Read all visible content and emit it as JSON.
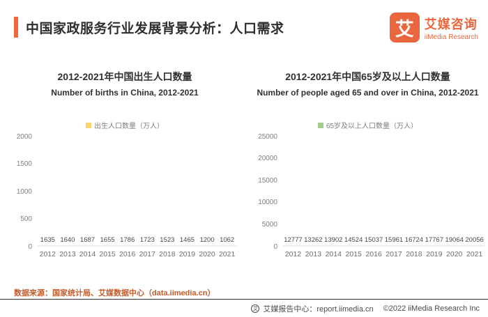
{
  "header": {
    "title": "中国家政服务行业发展背景分析：人口需求"
  },
  "logo": {
    "mark": "艾",
    "name_cn": "艾媒咨询",
    "name_en": "iiMedia Research"
  },
  "chart_data": [
    {
      "type": "bar",
      "title": "2012-2021年中国出生人口数量",
      "subtitle": "Number of births in China, 2012-2021",
      "legend": "出生人口数量（万人）",
      "legend_position": "top-center",
      "bar_color": "#F8D66D",
      "grid": false,
      "categories": [
        "2012",
        "2013",
        "2014",
        "2015",
        "2016",
        "2017",
        "2018",
        "2019",
        "2020",
        "2021"
      ],
      "values": [
        1635,
        1640,
        1687,
        1655,
        1786,
        1723,
        1523,
        1465,
        1200,
        1062
      ],
      "xlabel": "",
      "ylabel": "",
      "ylim": [
        0,
        2000
      ],
      "yticks": [
        0,
        500,
        1000,
        1500,
        2000
      ]
    },
    {
      "type": "bar",
      "title": "2012-2021年中国65岁及以上人口数量",
      "subtitle": "Number of people aged 65 and over in China, 2012-2021",
      "legend": "65岁及以上人口数量（万人）",
      "legend_position": "top-center",
      "bar_color": "#A4CE8C",
      "grid": false,
      "categories": [
        "2012",
        "2013",
        "2014",
        "2015",
        "2016",
        "2017",
        "2018",
        "2019",
        "2020",
        "2021"
      ],
      "values": [
        12777,
        13262,
        13902,
        14524,
        15037,
        15961,
        16724,
        17767,
        19064,
        20056
      ],
      "xlabel": "",
      "ylabel": "",
      "ylim": [
        0,
        25000
      ],
      "yticks": [
        0,
        5000,
        10000,
        15000,
        20000,
        25000
      ]
    }
  ],
  "footer": {
    "source": "数据来源：国家统计局、艾媒数据中心（data.iimedia.cn）",
    "report_center": "艾媒报告中心：report.iimedia.cn",
    "copyright": "©2022  iiMedia Research  Inc"
  }
}
